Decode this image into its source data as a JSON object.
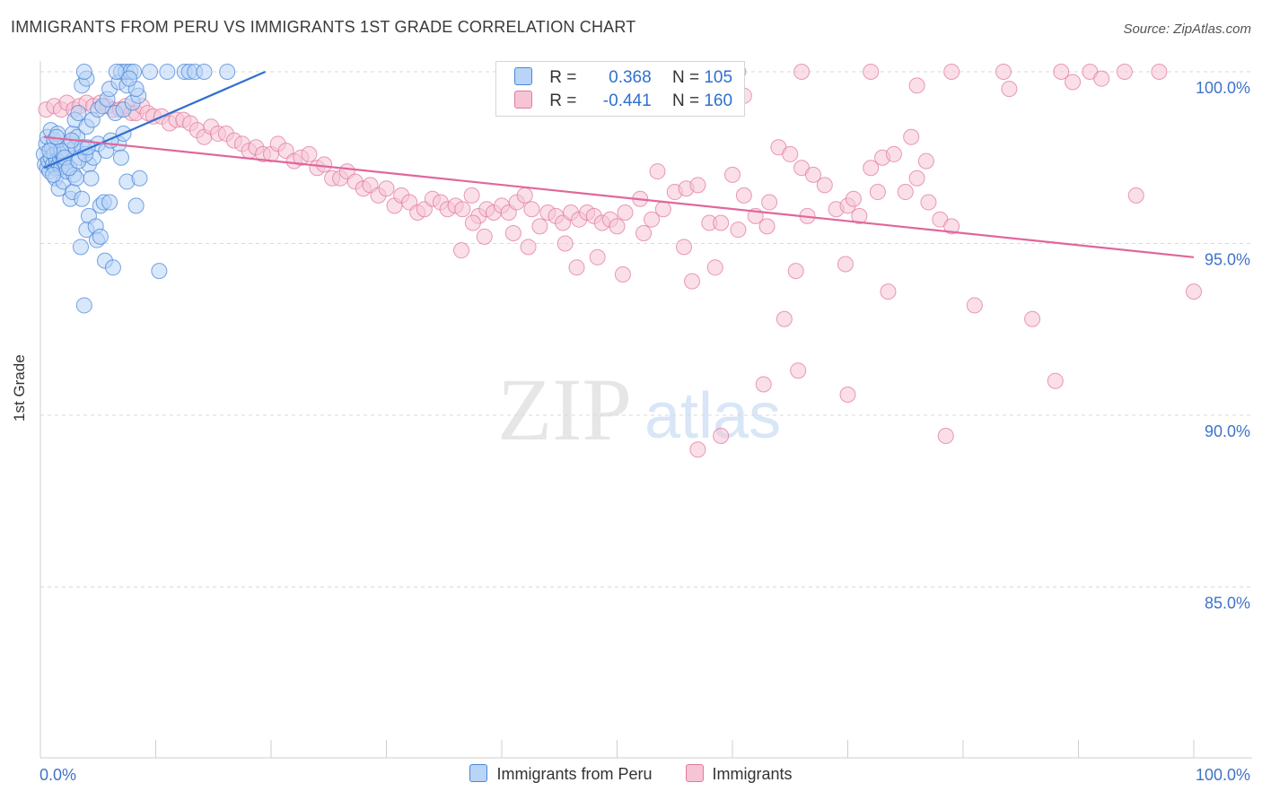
{
  "header": {
    "title": "IMMIGRANTS FROM PERU VS IMMIGRANTS 1ST GRADE CORRELATION CHART",
    "source": "Source: ZipAtlas.com"
  },
  "watermark": {
    "zip": "ZIP",
    "atlas": "atlas"
  },
  "legend": {
    "r_label": "R =",
    "n_label": "N =",
    "series1": {
      "r": "0.368",
      "n": "105"
    },
    "series2": {
      "r": "-0.441",
      "n": "160"
    }
  },
  "colors": {
    "blue": "#4a86d8",
    "blue_fill": "#b8d4f6",
    "blue_line": "#2f6fd0",
    "pink": "#e17a9f",
    "pink_fill": "#f6c4d5",
    "pink_line": "#e0679a",
    "axis_text": "#3f73c8"
  },
  "chart_data": {
    "type": "scatter",
    "title": "IMMIGRANTS FROM PERU VS IMMIGRANTS 1ST GRADE CORRELATION CHART",
    "xlabel": "",
    "ylabel": "1st Grade",
    "xlim": [
      0,
      100
    ],
    "ylim": [
      80.5,
      100.8
    ],
    "x_tick_labels": [
      "0.0%",
      "100.0%"
    ],
    "y_ticks": [
      100,
      95,
      90,
      85
    ],
    "y_tick_labels": [
      "100.0%",
      "95.0%",
      "90.0%",
      "85.0%"
    ],
    "grid": "horizontal dashed",
    "legend_position": "top-center",
    "series": [
      {
        "name": "Immigrants from Peru",
        "r": 0.368,
        "n": 105,
        "trend": {
          "x": [
            0.3,
            19.5
          ],
          "y": [
            97.2,
            100.0
          ]
        },
        "points": [
          [
            0.3,
            97.6
          ],
          [
            0.4,
            97.3
          ],
          [
            0.5,
            97.9
          ],
          [
            0.6,
            97.2
          ],
          [
            0.7,
            97.4
          ],
          [
            0.8,
            97.1
          ],
          [
            0.9,
            97.5
          ],
          [
            1.0,
            97.8
          ],
          [
            1.1,
            97.3
          ],
          [
            1.2,
            97.6
          ],
          [
            1.3,
            97.2
          ],
          [
            1.4,
            97.4
          ],
          [
            1.5,
            97.7
          ],
          [
            1.6,
            97.3
          ],
          [
            1.7,
            97.5
          ],
          [
            1.8,
            97.2
          ],
          [
            1.9,
            97.6
          ],
          [
            2.0,
            97.4
          ],
          [
            2.2,
            97.3
          ],
          [
            2.4,
            97.7
          ],
          [
            0.6,
            98.1
          ],
          [
            0.9,
            98.3
          ],
          [
            1.2,
            98.0
          ],
          [
            1.5,
            98.2
          ],
          [
            2.6,
            97.9
          ],
          [
            2.8,
            98.2
          ],
          [
            3.0,
            97.8
          ],
          [
            3.2,
            98.1
          ],
          [
            3.4,
            97.5
          ],
          [
            3.6,
            97.8
          ],
          [
            1.3,
            96.9
          ],
          [
            1.6,
            96.6
          ],
          [
            2.0,
            96.8
          ],
          [
            2.6,
            96.3
          ],
          [
            2.8,
            96.5
          ],
          [
            3.6,
            96.3
          ],
          [
            4.2,
            97.3
          ],
          [
            4.4,
            96.9
          ],
          [
            4.6,
            97.5
          ],
          [
            5.0,
            97.9
          ],
          [
            5.2,
            96.1
          ],
          [
            5.5,
            96.2
          ],
          [
            6.0,
            96.2
          ],
          [
            6.8,
            97.9
          ],
          [
            7.0,
            97.5
          ],
          [
            7.2,
            98.2
          ],
          [
            7.5,
            96.8
          ],
          [
            8.3,
            96.1
          ],
          [
            8.6,
            96.9
          ],
          [
            3.0,
            98.6
          ],
          [
            3.3,
            98.8
          ],
          [
            4.0,
            98.4
          ],
          [
            4.5,
            98.6
          ],
          [
            5.0,
            98.9
          ],
          [
            5.4,
            99.0
          ],
          [
            5.8,
            99.2
          ],
          [
            6.5,
            98.8
          ],
          [
            7.2,
            98.9
          ],
          [
            8.0,
            99.1
          ],
          [
            8.5,
            99.3
          ],
          [
            3.6,
            99.6
          ],
          [
            4.0,
            99.8
          ],
          [
            3.8,
            100.0
          ],
          [
            6.0,
            99.5
          ],
          [
            6.8,
            99.7
          ],
          [
            7.5,
            99.6
          ],
          [
            8.3,
            99.5
          ],
          [
            7.0,
            100.0
          ],
          [
            7.4,
            100.0
          ],
          [
            7.8,
            100.0
          ],
          [
            8.1,
            100.0
          ],
          [
            9.5,
            100.0
          ],
          [
            11.0,
            100.0
          ],
          [
            12.5,
            100.0
          ],
          [
            12.9,
            100.0
          ],
          [
            13.4,
            100.0
          ],
          [
            14.2,
            100.0
          ],
          [
            16.2,
            100.0
          ],
          [
            6.6,
            100.0
          ],
          [
            7.7,
            99.8
          ],
          [
            4.2,
            95.8
          ],
          [
            4.0,
            95.4
          ],
          [
            4.8,
            95.5
          ],
          [
            4.9,
            95.1
          ],
          [
            5.2,
            95.2
          ],
          [
            3.5,
            94.9
          ],
          [
            5.6,
            94.5
          ],
          [
            6.3,
            94.3
          ],
          [
            10.3,
            94.2
          ],
          [
            3.8,
            93.2
          ],
          [
            2.3,
            97.1
          ],
          [
            2.9,
            97.0
          ],
          [
            3.1,
            96.9
          ],
          [
            1.1,
            97.0
          ],
          [
            1.8,
            97.7
          ],
          [
            2.1,
            97.5
          ],
          [
            2.5,
            97.2
          ],
          [
            3.3,
            97.4
          ],
          [
            3.9,
            97.6
          ],
          [
            4.1,
            97.8
          ],
          [
            5.7,
            97.7
          ],
          [
            6.1,
            98.0
          ],
          [
            0.8,
            97.7
          ],
          [
            1.4,
            98.1
          ],
          [
            2.7,
            98.0
          ]
        ]
      },
      {
        "name": "Immigrants",
        "r": -0.441,
        "n": 160,
        "trend": {
          "x": [
            0.3,
            100
          ],
          "y": [
            98.1,
            94.6
          ]
        },
        "points": [
          [
            0.5,
            98.9
          ],
          [
            1.2,
            99.0
          ],
          [
            1.8,
            98.9
          ],
          [
            2.3,
            99.1
          ],
          [
            2.9,
            98.9
          ],
          [
            3.4,
            99.0
          ],
          [
            4.0,
            99.1
          ],
          [
            4.6,
            99.0
          ],
          [
            5.2,
            99.1
          ],
          [
            5.8,
            99.0
          ],
          [
            6.3,
            98.9
          ],
          [
            6.9,
            98.9
          ],
          [
            7.4,
            99.0
          ],
          [
            7.9,
            98.8
          ],
          [
            8.3,
            98.8
          ],
          [
            8.8,
            99.0
          ],
          [
            9.3,
            98.8
          ],
          [
            9.8,
            98.7
          ],
          [
            10.5,
            98.7
          ],
          [
            11.2,
            98.5
          ],
          [
            11.8,
            98.6
          ],
          [
            12.4,
            98.6
          ],
          [
            13.0,
            98.5
          ],
          [
            13.6,
            98.3
          ],
          [
            14.2,
            98.1
          ],
          [
            14.8,
            98.4
          ],
          [
            15.4,
            98.2
          ],
          [
            16.1,
            98.2
          ],
          [
            16.8,
            98.0
          ],
          [
            17.5,
            97.9
          ],
          [
            18.1,
            97.7
          ],
          [
            18.7,
            97.8
          ],
          [
            19.3,
            97.6
          ],
          [
            20.0,
            97.6
          ],
          [
            20.6,
            97.9
          ],
          [
            21.3,
            97.7
          ],
          [
            22.0,
            97.4
          ],
          [
            22.6,
            97.5
          ],
          [
            23.3,
            97.6
          ],
          [
            24.0,
            97.2
          ],
          [
            24.6,
            97.3
          ],
          [
            25.3,
            96.9
          ],
          [
            26.0,
            96.9
          ],
          [
            26.6,
            97.1
          ],
          [
            27.3,
            96.8
          ],
          [
            28.0,
            96.6
          ],
          [
            28.6,
            96.7
          ],
          [
            29.3,
            96.4
          ],
          [
            30.0,
            96.6
          ],
          [
            30.7,
            96.1
          ],
          [
            31.3,
            96.4
          ],
          [
            32.0,
            96.2
          ],
          [
            32.7,
            95.9
          ],
          [
            33.3,
            96.0
          ],
          [
            34.0,
            96.3
          ],
          [
            34.7,
            96.2
          ],
          [
            35.3,
            96.0
          ],
          [
            36.0,
            96.1
          ],
          [
            36.6,
            96.0
          ],
          [
            37.4,
            96.4
          ],
          [
            38.0,
            95.8
          ],
          [
            38.7,
            96.0
          ],
          [
            39.3,
            95.9
          ],
          [
            40.0,
            96.1
          ],
          [
            40.6,
            95.9
          ],
          [
            41.3,
            96.2
          ],
          [
            42.0,
            96.4
          ],
          [
            42.6,
            96.0
          ],
          [
            43.3,
            95.5
          ],
          [
            44.0,
            95.9
          ],
          [
            44.7,
            95.8
          ],
          [
            45.3,
            95.6
          ],
          [
            46.0,
            95.9
          ],
          [
            46.7,
            95.7
          ],
          [
            47.4,
            95.9
          ],
          [
            48.0,
            95.8
          ],
          [
            48.7,
            95.6
          ],
          [
            49.4,
            95.7
          ],
          [
            50.0,
            95.5
          ],
          [
            50.7,
            95.9
          ],
          [
            52.0,
            96.3
          ],
          [
            53.0,
            95.7
          ],
          [
            54.0,
            96.0
          ],
          [
            55.0,
            96.5
          ],
          [
            56.0,
            96.6
          ],
          [
            57.0,
            96.7
          ],
          [
            58.0,
            95.6
          ],
          [
            59.0,
            95.6
          ],
          [
            60.0,
            97.0
          ],
          [
            61.0,
            96.4
          ],
          [
            62.0,
            95.8
          ],
          [
            63.0,
            95.5
          ],
          [
            64.0,
            97.8
          ],
          [
            65.0,
            97.6
          ],
          [
            66.0,
            97.2
          ],
          [
            67.0,
            97.0
          ],
          [
            68.0,
            96.7
          ],
          [
            69.0,
            96.0
          ],
          [
            70.0,
            96.1
          ],
          [
            71.0,
            95.8
          ],
          [
            72.0,
            97.2
          ],
          [
            73.0,
            97.5
          ],
          [
            74.0,
            97.6
          ],
          [
            75.0,
            96.5
          ],
          [
            76.0,
            96.9
          ],
          [
            77.0,
            96.2
          ],
          [
            78.0,
            95.7
          ],
          [
            79.0,
            95.5
          ],
          [
            75.5,
            98.1
          ],
          [
            76.8,
            97.4
          ],
          [
            63.2,
            96.2
          ],
          [
            65.5,
            94.2
          ],
          [
            66.5,
            95.8
          ],
          [
            69.8,
            94.4
          ],
          [
            55.8,
            94.9
          ],
          [
            53.5,
            97.1
          ],
          [
            58.5,
            94.3
          ],
          [
            60.5,
            95.4
          ],
          [
            70.5,
            96.3
          ],
          [
            72.6,
            96.5
          ],
          [
            46.5,
            94.3
          ],
          [
            48.3,
            94.6
          ],
          [
            45.5,
            95.0
          ],
          [
            50.5,
            94.1
          ],
          [
            52.3,
            95.3
          ],
          [
            41.0,
            95.3
          ],
          [
            42.3,
            94.9
          ],
          [
            37.5,
            95.6
          ],
          [
            38.5,
            95.2
          ],
          [
            36.5,
            94.8
          ],
          [
            56.5,
            93.9
          ],
          [
            73.5,
            93.6
          ],
          [
            81.0,
            93.2
          ],
          [
            100.0,
            93.6
          ],
          [
            62.7,
            90.9
          ],
          [
            65.7,
            91.3
          ],
          [
            70.0,
            90.6
          ],
          [
            88.0,
            91.0
          ],
          [
            59.0,
            89.4
          ],
          [
            78.5,
            89.4
          ],
          [
            95.0,
            96.4
          ],
          [
            86.0,
            92.8
          ],
          [
            64.5,
            92.8
          ],
          [
            57.0,
            89.0
          ],
          [
            46.2,
            100.0
          ],
          [
            52.7,
            100.0
          ],
          [
            66.0,
            100.0
          ],
          [
            72.0,
            100.0
          ],
          [
            79.0,
            100.0
          ],
          [
            83.5,
            100.0
          ],
          [
            88.5,
            100.0
          ],
          [
            91.0,
            100.0
          ],
          [
            94.0,
            100.0
          ],
          [
            97.0,
            100.0
          ],
          [
            60.5,
            100.0
          ],
          [
            76.0,
            99.6
          ],
          [
            61.0,
            99.3
          ],
          [
            84.0,
            99.5
          ],
          [
            89.5,
            99.7
          ],
          [
            92.0,
            99.8
          ]
        ]
      }
    ]
  }
}
